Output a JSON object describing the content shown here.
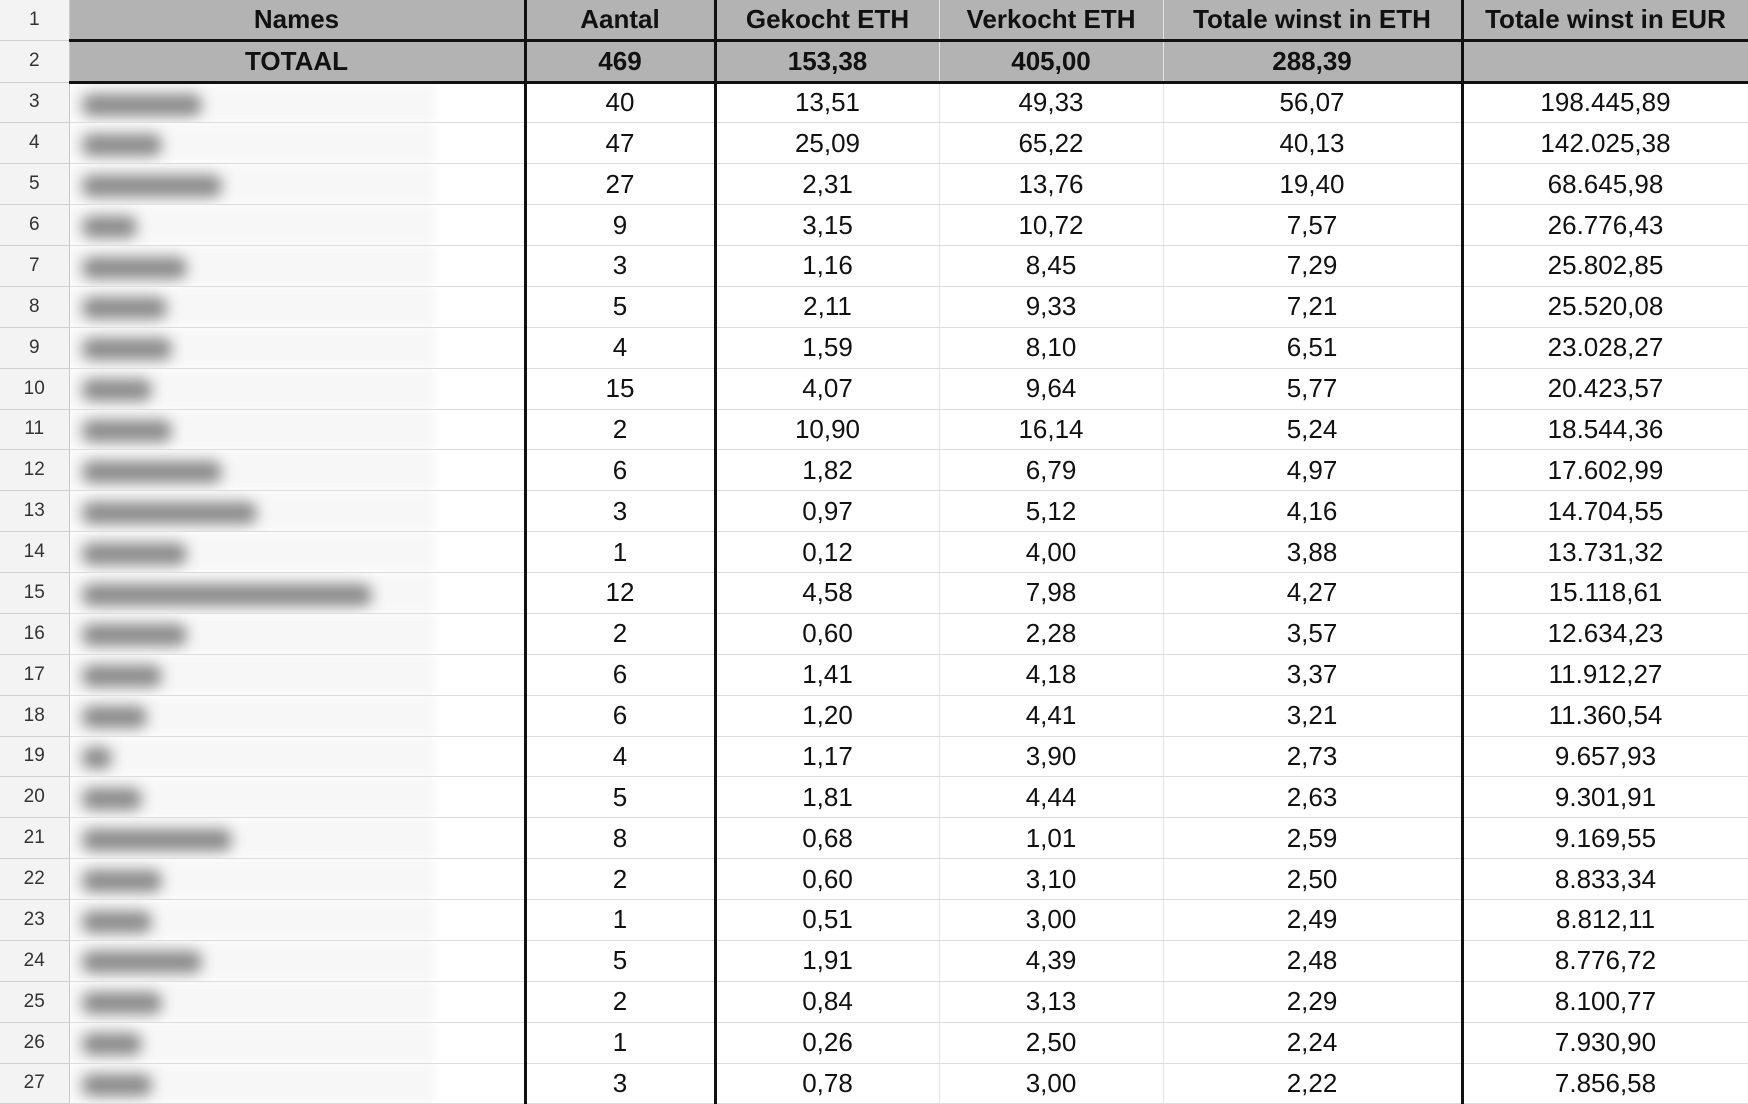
{
  "sheet": {
    "row_numbers": [
      1,
      2,
      3,
      4,
      5,
      6,
      7,
      8,
      9,
      10,
      11,
      12,
      13,
      14,
      15,
      16,
      17,
      18,
      19,
      20,
      21,
      22,
      23,
      24,
      25,
      26,
      27
    ],
    "header": [
      "Names",
      "Aantal",
      "Gekocht ETH",
      "Verkocht ETH",
      "Totale winst in ETH",
      "Totale winst in EUR"
    ],
    "total": {
      "label": "TOTAAL",
      "values": [
        469,
        "153,38",
        "405,00",
        "288,39"
      ]
    },
    "rows": [
      [
        40,
        "13,51",
        "49,33",
        "56,07",
        "198.445,89"
      ],
      [
        47,
        "25,09",
        "65,22",
        "40,13",
        "142.025,38"
      ],
      [
        27,
        "2,31",
        "13,76",
        "19,40",
        "68.645,98"
      ],
      [
        9,
        "3,15",
        "10,72",
        "7,57",
        "26.776,43"
      ],
      [
        3,
        "1,16",
        "8,45",
        "7,29",
        "25.802,85"
      ],
      [
        5,
        "2,11",
        "9,33",
        "7,21",
        "25.520,08"
      ],
      [
        4,
        "1,59",
        "8,10",
        "6,51",
        "23.028,27"
      ],
      [
        15,
        "4,07",
        "9,64",
        "5,77",
        "20.423,57"
      ],
      [
        2,
        "10,90",
        "16,14",
        "5,24",
        "18.544,36"
      ],
      [
        6,
        "1,82",
        "6,79",
        "4,97",
        "17.602,99"
      ],
      [
        3,
        "0,97",
        "5,12",
        "4,16",
        "14.704,55"
      ],
      [
        1,
        "0,12",
        "4,00",
        "3,88",
        "13.731,32"
      ],
      [
        12,
        "4,58",
        "7,98",
        "4,27",
        "15.118,61"
      ],
      [
        2,
        "0,60",
        "2,28",
        "3,57",
        "12.634,23"
      ],
      [
        6,
        "1,41",
        "4,18",
        "3,37",
        "11.912,27"
      ],
      [
        6,
        "1,20",
        "4,41",
        "3,21",
        "11.360,54"
      ],
      [
        4,
        "1,17",
        "3,90",
        "2,73",
        "9.657,93"
      ],
      [
        5,
        "1,81",
        "4,44",
        "2,63",
        "9.301,91"
      ],
      [
        8,
        "0,68",
        "1,01",
        "2,59",
        "9.169,55"
      ],
      [
        2,
        "0,60",
        "3,10",
        "2,50",
        "8.833,34"
      ],
      [
        1,
        "0,51",
        "3,00",
        "2,49",
        "8.812,11"
      ],
      [
        5,
        "1,91",
        "4,39",
        "2,48",
        "8.776,72"
      ],
      [
        2,
        "0,84",
        "3,13",
        "2,29",
        "8.100,77"
      ],
      [
        1,
        "0,26",
        "2,50",
        "2,24",
        "7.930,90"
      ],
      [
        3,
        "0,78",
        "3,00",
        "2,22",
        "7.856,58"
      ]
    ]
  }
}
